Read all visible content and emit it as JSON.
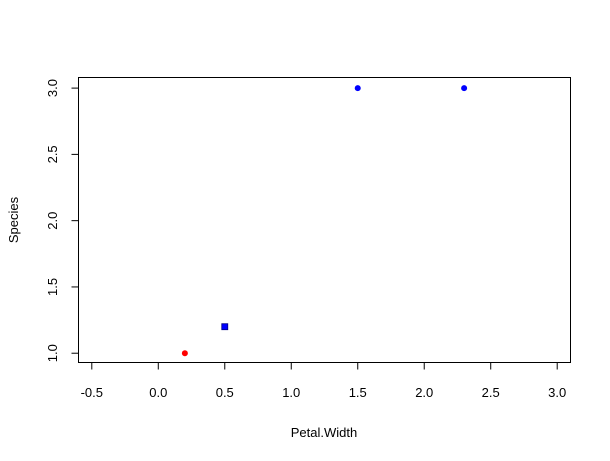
{
  "chart_data": {
    "type": "scatter",
    "title": "",
    "xlabel": "Petal.Width",
    "ylabel": "Species",
    "xlim": [
      -0.6,
      3.1
    ],
    "ylim": [
      0.93,
      3.08
    ],
    "x_ticks": [
      "-0.5",
      "0.0",
      "0.5",
      "1.0",
      "1.5",
      "2.0",
      "2.5",
      "3.0"
    ],
    "y_ticks": [
      "1.0",
      "1.5",
      "2.0",
      "2.5",
      "3.0"
    ],
    "grid": false,
    "legend": "none",
    "points": [
      {
        "x": 0.2,
        "y": 1.0,
        "color": "#ff0000",
        "shape": "circle"
      },
      {
        "x": 0.5,
        "y": 1.2,
        "color": "#0000ff",
        "shape": "square"
      },
      {
        "x": 1.5,
        "y": 3.0,
        "color": "#0000ff",
        "shape": "circle"
      },
      {
        "x": 2.3,
        "y": 3.0,
        "color": "#0000ff",
        "shape": "circle"
      }
    ]
  }
}
